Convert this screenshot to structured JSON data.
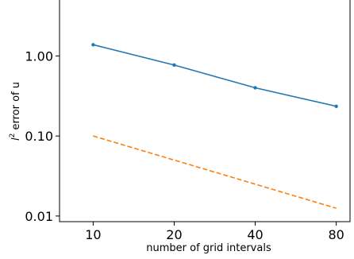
{
  "chart_data": {
    "type": "line",
    "xlabel": "number of grid intervals",
    "ylabel_prefix": "l",
    "ylabel_sup": "2",
    "ylabel_rest": " error of u",
    "x_scale": "log",
    "y_scale": "log",
    "xlim": [
      7.5,
      90
    ],
    "ylim": [
      0.0085,
      5.0
    ],
    "grid": false,
    "x_ticks": [
      10,
      20,
      40,
      80
    ],
    "x_tick_labels": [
      "10",
      "20",
      "40",
      "80"
    ],
    "y_ticks": [
      0.01,
      0.1,
      1.0
    ],
    "y_tick_labels": [
      "0.01",
      "0.10",
      "1.00"
    ],
    "series": [
      {
        "x": [
          10,
          20,
          40,
          80
        ],
        "y": [
          1.38,
          0.77,
          0.4,
          0.235
        ],
        "color": "#1f77b4",
        "style": "solid",
        "markers": true
      },
      {
        "x": [
          10,
          80
        ],
        "y": [
          0.1,
          0.0125
        ],
        "color": "#ff7f0e",
        "style": "dashed",
        "markers": false
      }
    ]
  }
}
